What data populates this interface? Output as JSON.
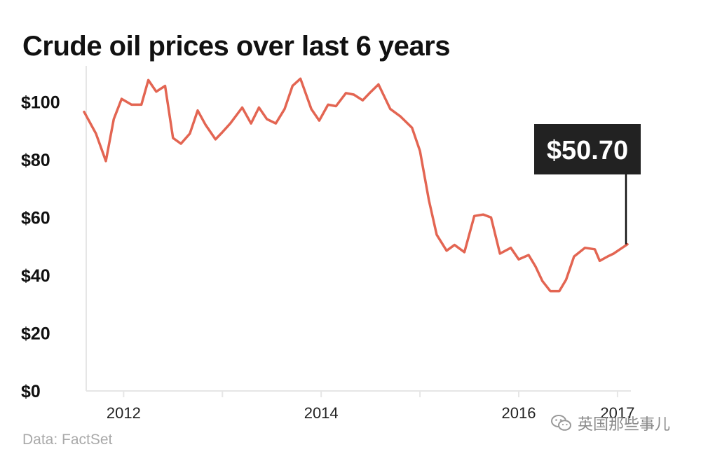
{
  "title": "Crude oil prices over last 6 years",
  "source": "Data: FactSet",
  "watermark": {
    "text": "英国那些事儿",
    "icon": "wechat-icon"
  },
  "colors": {
    "line": "#e36552",
    "callout_bg": "#222222",
    "callout_text": "#ffffff",
    "axis": "#e6e6e6",
    "tick_label": "#111111"
  },
  "chart_data": {
    "type": "line",
    "title": "Crude oil prices over last 6 years",
    "xlabel": "",
    "ylabel": "",
    "xlim": [
      2011.6,
      2017.1
    ],
    "ylim": [
      0,
      110
    ],
    "grid": false,
    "y_ticks": [
      {
        "value": 0,
        "label": "$0"
      },
      {
        "value": 20,
        "label": "$20"
      },
      {
        "value": 40,
        "label": "$40"
      },
      {
        "value": 60,
        "label": "$60"
      },
      {
        "value": 80,
        "label": "$80"
      },
      {
        "value": 100,
        "label": "$100"
      }
    ],
    "x_ticks": [
      {
        "value": 2012,
        "label": "2012"
      },
      {
        "value": 2014,
        "label": "2014"
      },
      {
        "value": 2016,
        "label": "2016"
      },
      {
        "value": 2017,
        "label": "2017"
      }
    ],
    "x_minor_ticks": [
      2013,
      2015
    ],
    "series": [
      {
        "x": [
          2011.6,
          2011.72,
          2011.82,
          2011.9,
          2011.98,
          2012.08,
          2012.18,
          2012.25,
          2012.33,
          2012.42,
          2012.5,
          2012.58,
          2012.67,
          2012.75,
          2012.83,
          2012.93,
          2013.0,
          2013.08,
          2013.2,
          2013.29,
          2013.37,
          2013.45,
          2013.54,
          2013.63,
          2013.71,
          2013.79,
          2013.9,
          2013.98,
          2014.07,
          2014.15,
          2014.25,
          2014.33,
          2014.42,
          2014.49,
          2014.58,
          2014.7,
          2014.8,
          2014.92,
          2015.0,
          2015.09,
          2015.17,
          2015.27,
          2015.35,
          2015.45,
          2015.55,
          2015.64,
          2015.72,
          2015.81,
          2015.92,
          2016.0,
          2016.1,
          2016.17,
          2016.24,
          2016.32,
          2016.41,
          2016.48,
          2016.56,
          2016.67,
          2016.77,
          2016.82,
          2016.9,
          2016.96,
          2017.1
        ],
        "y": [
          96.5,
          89,
          79.5,
          94,
          101,
          99,
          99,
          107.5,
          103.5,
          105.5,
          87.5,
          85.5,
          89,
          97,
          92,
          87,
          89.5,
          92.5,
          98,
          92.5,
          98,
          94,
          92.5,
          97.5,
          105.5,
          108,
          97.5,
          93.5,
          99,
          98.5,
          103,
          102.5,
          100.5,
          103,
          106,
          97.5,
          95,
          91,
          83,
          66,
          54,
          48.5,
          50.5,
          48,
          60.5,
          61,
          60,
          47.5,
          49.5,
          45.5,
          47,
          43,
          38,
          34.5,
          34.5,
          38.5,
          46.5,
          49.5,
          49,
          45,
          46.5,
          47.5,
          50.7
        ]
      }
    ],
    "callout": {
      "label": "$50.70",
      "value": 50.7,
      "x": 2017.1
    }
  }
}
